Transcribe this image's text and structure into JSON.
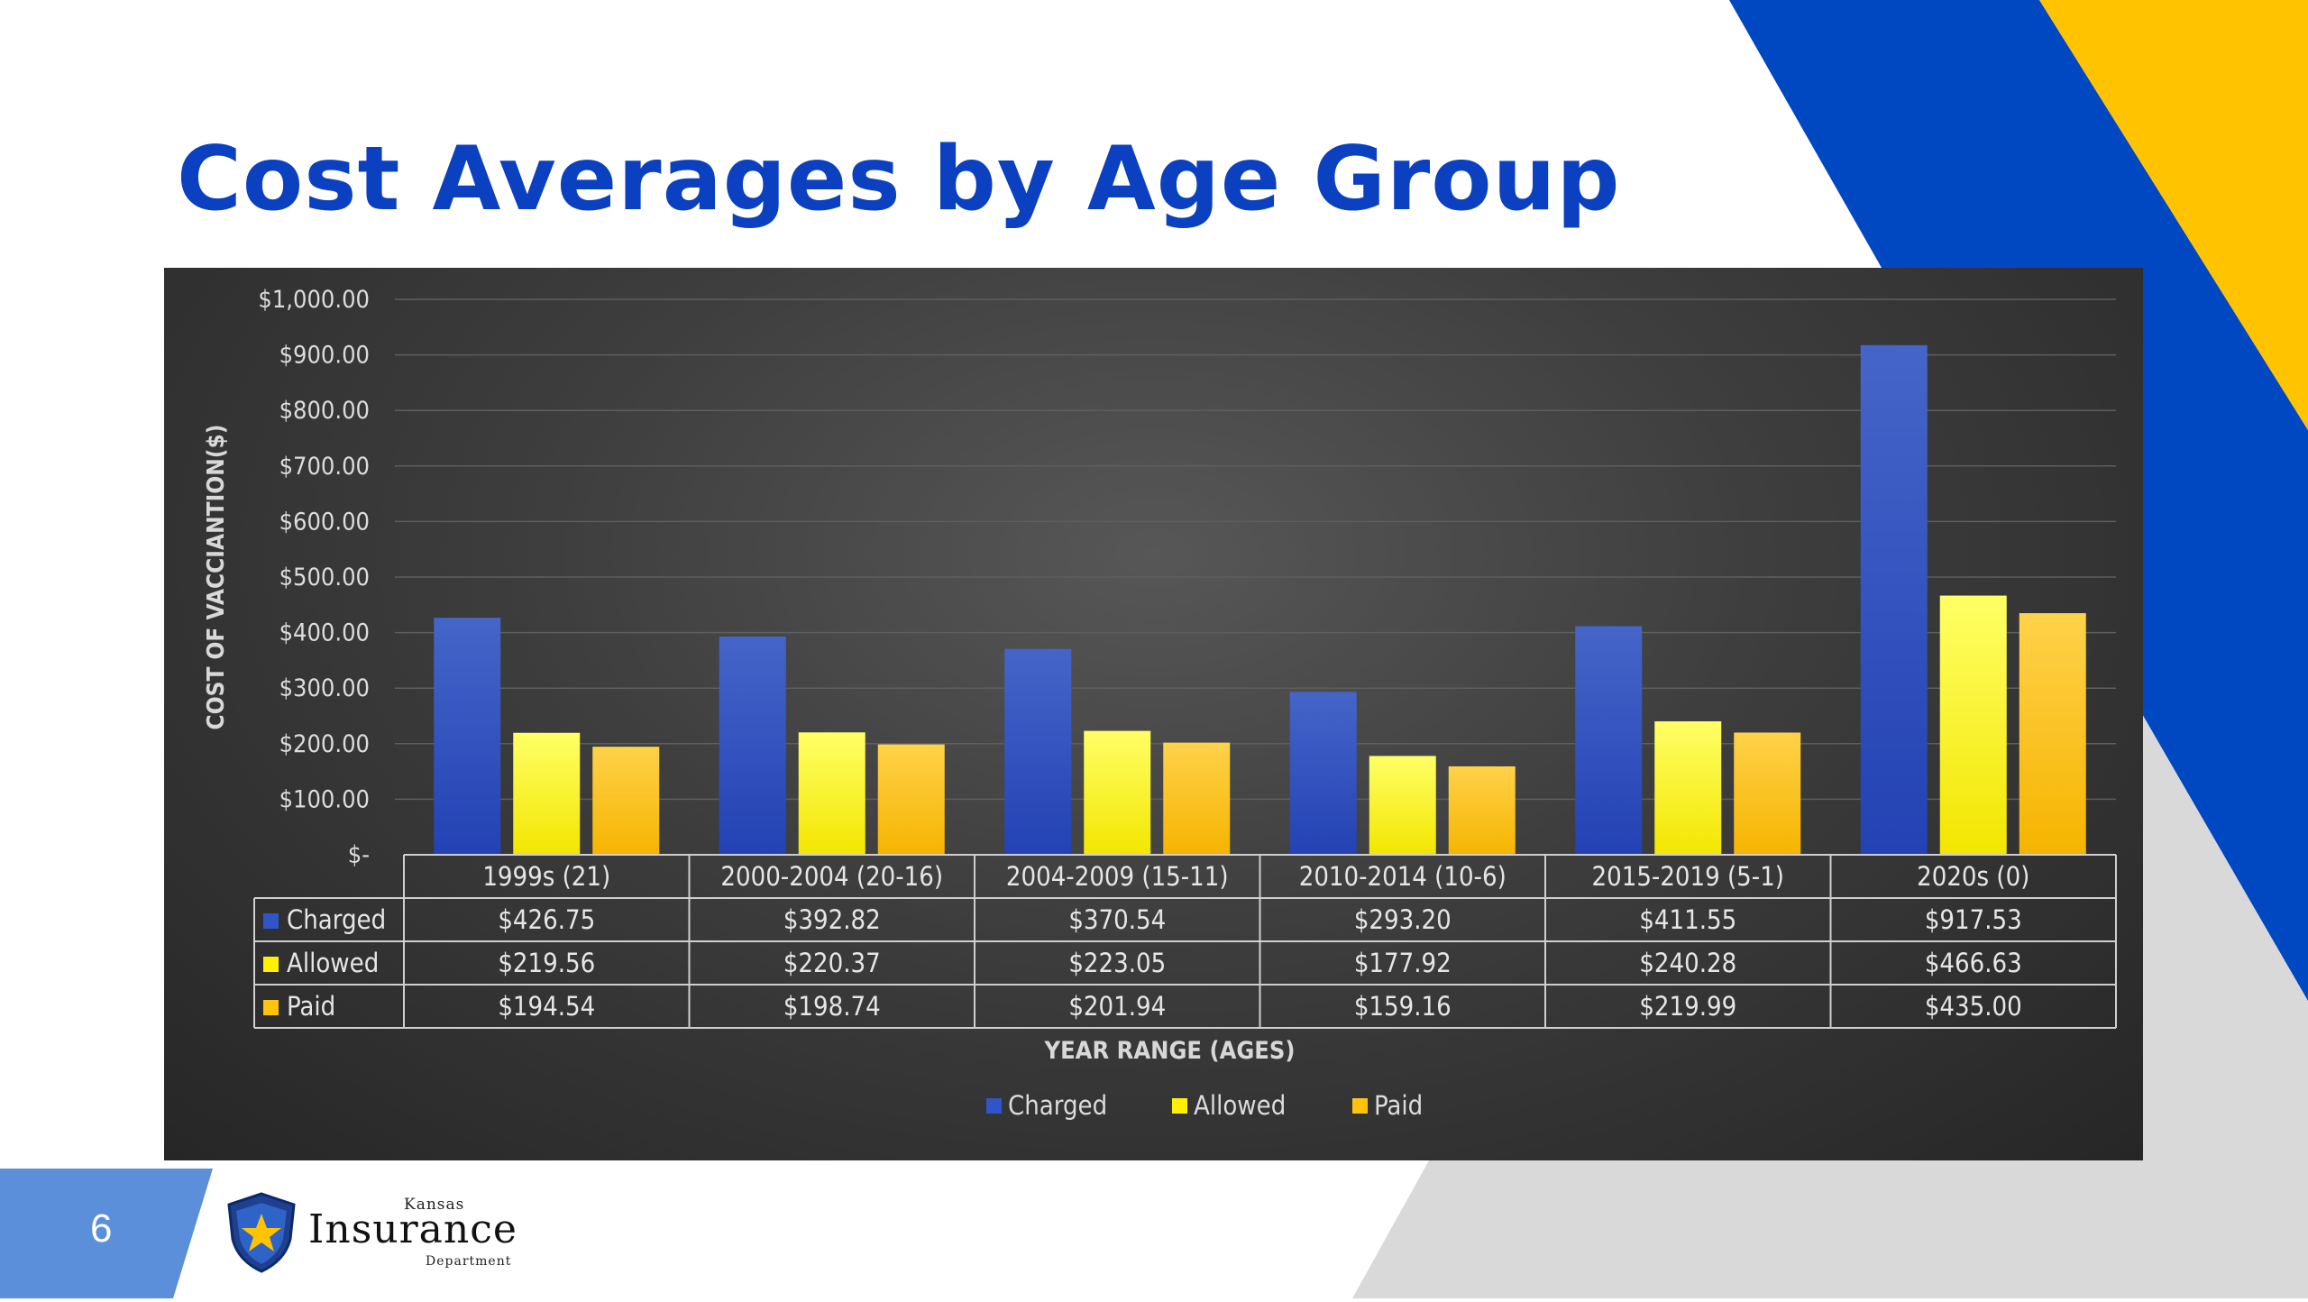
{
  "slide": {
    "title": "Cost Averages by Age Group",
    "page_number": "6",
    "accent_blue": "#0047c2",
    "accent_yellow": "#ffc300",
    "accent_gray": "#d9d9d9"
  },
  "logo": {
    "kansas": "Kansas",
    "insurance": "Insurance",
    "department": "Department",
    "icon": "shield-icon"
  },
  "chart_data": {
    "type": "bar",
    "title": "",
    "xlabel": "YEAR RANGE (AGES)",
    "ylabel": "COST OF VACCIANTION($)",
    "ylim": [
      0,
      1000
    ],
    "yticks": [
      0,
      100,
      200,
      300,
      400,
      500,
      600,
      700,
      800,
      900,
      1000
    ],
    "ytick_labels": [
      "$-",
      "$100.00",
      "$200.00",
      "$300.00",
      "$400.00",
      "$500.00",
      "$600.00",
      "$700.00",
      "$800.00",
      "$900.00",
      "$1,000.00"
    ],
    "grid": true,
    "legend_placement": "bottom-center",
    "categories": [
      "1999s (21)",
      "2000-2004 (20-16)",
      "2004-2009 (15-11)",
      "2010-2014 (10-6)",
      "2015-2019 (5-1)",
      "2020s (0)"
    ],
    "series": [
      {
        "name": "Charged",
        "color": "#2f55c8",
        "values": [
          426.75,
          392.82,
          370.54,
          293.2,
          411.55,
          917.53
        ],
        "labels": [
          "$426.75",
          "$392.82",
          "$370.54",
          "$293.20",
          "$411.55",
          "$917.53"
        ]
      },
      {
        "name": "Allowed",
        "color": "#fff000",
        "values": [
          219.56,
          220.37,
          223.05,
          177.92,
          240.28,
          466.63
        ],
        "labels": [
          "$219.56",
          "$220.37",
          "$223.05",
          "$177.92",
          "$240.28",
          "$466.63"
        ]
      },
      {
        "name": "Paid",
        "color": "#ffc20e",
        "values": [
          194.54,
          198.74,
          201.94,
          159.16,
          219.99,
          435.0
        ],
        "labels": [
          "$194.54",
          "$198.74",
          "$201.94",
          "$159.16",
          "$219.99",
          "$435.00"
        ]
      }
    ]
  }
}
